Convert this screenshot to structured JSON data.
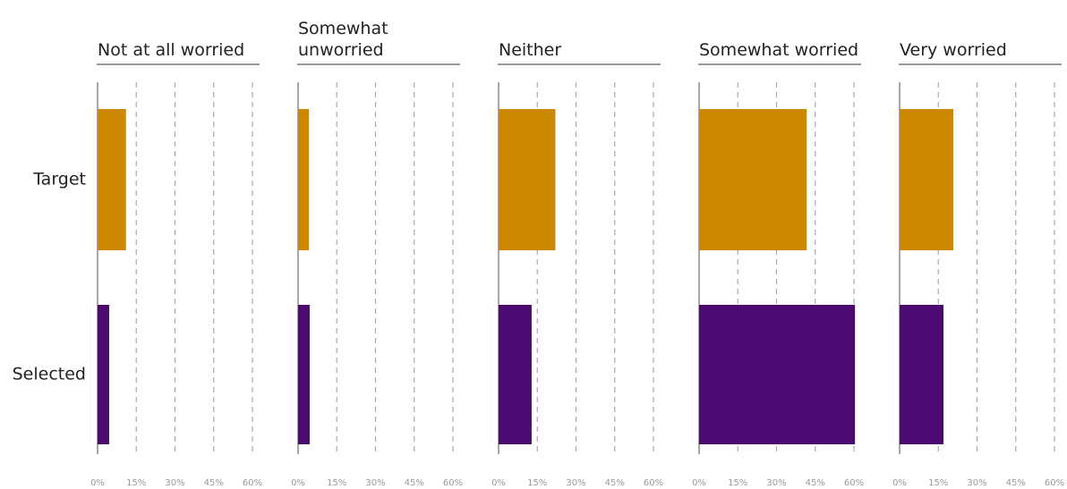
{
  "chart_data": {
    "type": "bar",
    "orientation": "horizontal",
    "categories": [
      "Target",
      "Selected"
    ],
    "colors": [
      "#cc8800",
      "#4b0a72"
    ],
    "xlim": [
      0,
      60
    ],
    "xticks": [
      {
        "value": 0,
        "label": "0%"
      },
      {
        "value": 15,
        "label": "15%"
      },
      {
        "value": 30,
        "label": "30%"
      },
      {
        "value": 45,
        "label": "45%"
      },
      {
        "value": 60,
        "label": "60%"
      }
    ],
    "grid": true,
    "panels": [
      {
        "title": "Not at all worried",
        "values": [
          11,
          4.5
        ]
      },
      {
        "title": "Somewhat unworried",
        "values": [
          4.2,
          4.5
        ]
      },
      {
        "title": "Neither",
        "values": [
          22,
          12.8
        ]
      },
      {
        "title": "Somewhat worried",
        "values": [
          41.7,
          60.4
        ]
      },
      {
        "title": "Very worried",
        "values": [
          20.8,
          17
        ]
      }
    ]
  }
}
